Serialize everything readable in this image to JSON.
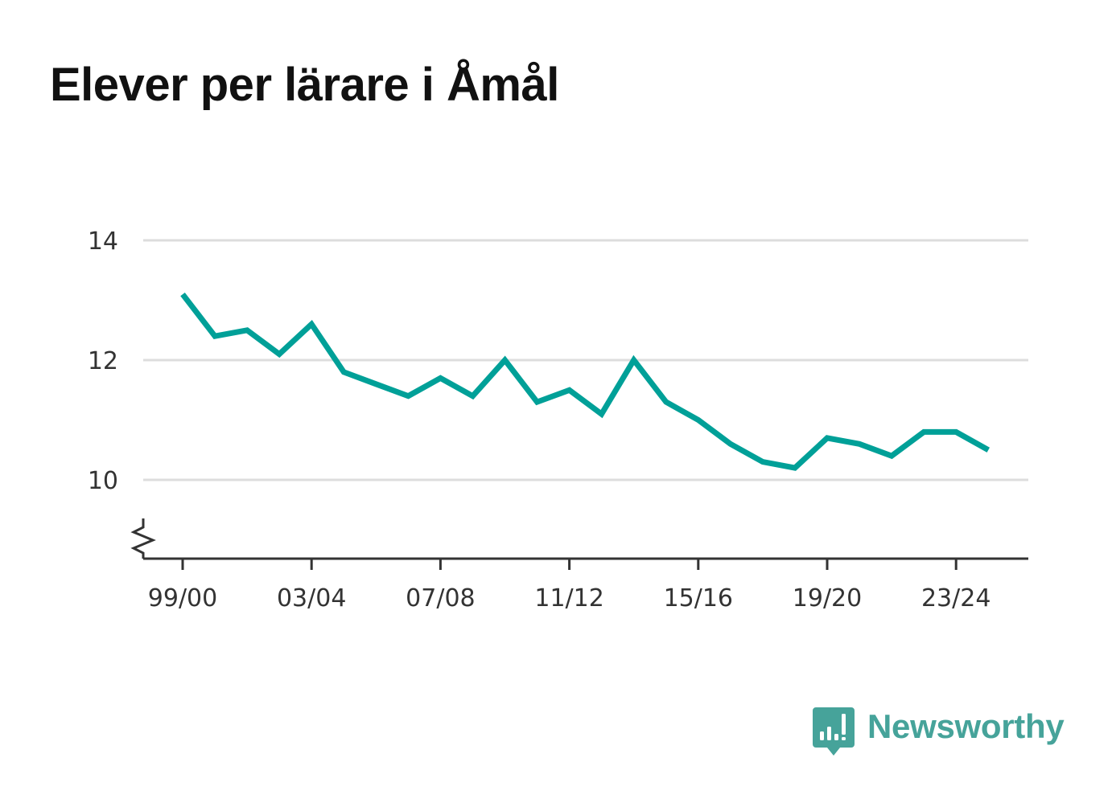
{
  "title": "Elever per lärare i Åmål",
  "brand": {
    "name": "Newsworthy",
    "icon": "newsworthy-bar-chart-speech-bubble-icon"
  },
  "colors": {
    "line": "#00a098",
    "grid": "#dddddd",
    "axis": "#333333",
    "brand": "#46a39a"
  },
  "chart_data": {
    "type": "line",
    "title": "Elever per lärare i Åmål",
    "xlabel": "",
    "ylabel": "",
    "ylim": [
      9,
      14
    ],
    "y_axis_break": true,
    "grid": "horizontal",
    "yticks": [
      10,
      12,
      14
    ],
    "xtick_labels": [
      "99/00",
      "03/04",
      "07/08",
      "11/12",
      "15/16",
      "19/20",
      "23/24"
    ],
    "x": [
      "99/00",
      "00/01",
      "01/02",
      "02/03",
      "03/04",
      "04/05",
      "05/06",
      "06/07",
      "07/08",
      "08/09",
      "09/10",
      "10/11",
      "11/12",
      "12/13",
      "13/14",
      "14/15",
      "15/16",
      "16/17",
      "17/18",
      "18/19",
      "19/20",
      "20/21",
      "21/22",
      "22/23",
      "23/24",
      "24/25"
    ],
    "series": [
      {
        "values": [
          13.1,
          12.4,
          12.5,
          12.1,
          12.6,
          11.8,
          11.6,
          11.4,
          11.7,
          11.4,
          12.0,
          11.3,
          11.5,
          11.1,
          12.0,
          11.3,
          11.0,
          10.6,
          10.3,
          10.2,
          10.7,
          10.6,
          10.4,
          10.8,
          10.8,
          10.5
        ]
      }
    ]
  }
}
